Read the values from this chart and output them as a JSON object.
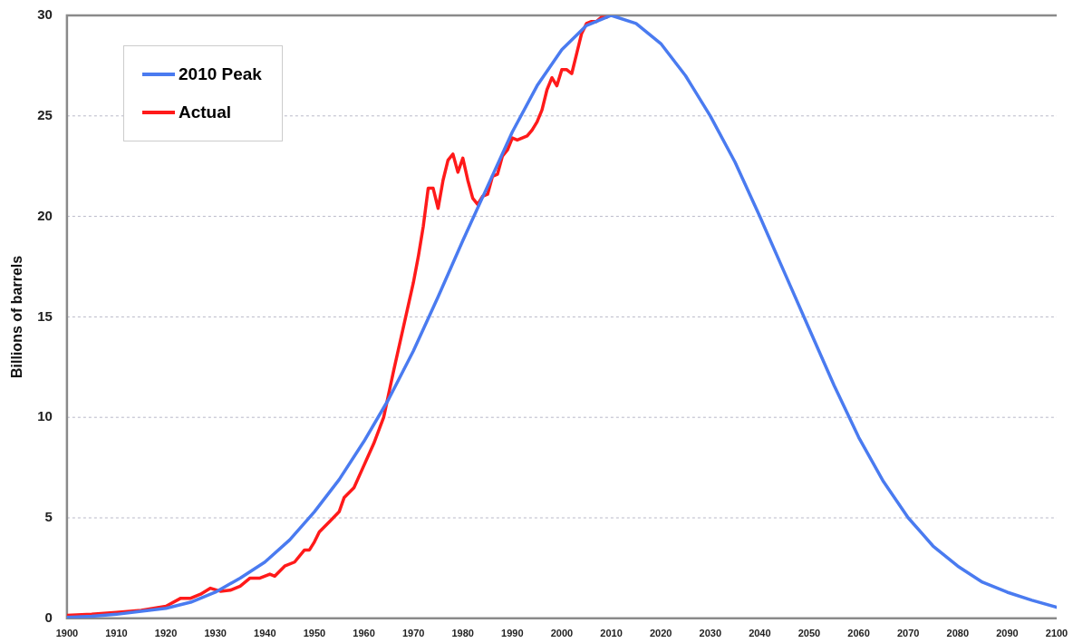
{
  "chart_data": {
    "type": "line",
    "ylabel": "Billions of barrels",
    "xlim": [
      1900,
      2100
    ],
    "xticks": [
      1900,
      1910,
      1920,
      1930,
      1940,
      1950,
      1960,
      1970,
      1980,
      1990,
      2000,
      2010,
      2020,
      2030,
      2040,
      2050,
      2060,
      2070,
      2080,
      2090,
      2100
    ],
    "ylim": [
      0,
      30
    ],
    "yticks": [
      0,
      5,
      10,
      15,
      20,
      25,
      30
    ],
    "grid": "y",
    "legend": "top left",
    "marker": "none",
    "line_style": "solid",
    "series": [
      {
        "name": "2010 Peak",
        "color": "#4a7bf0",
        "x": [
          1900,
          1905,
          1910,
          1915,
          1920,
          1925,
          1930,
          1935,
          1940,
          1945,
          1950,
          1955,
          1960,
          1965,
          1970,
          1975,
          1980,
          1985,
          1990,
          1995,
          2000,
          2005,
          2010,
          2015,
          2020,
          2025,
          2030,
          2035,
          2040,
          2045,
          2050,
          2055,
          2060,
          2065,
          2070,
          2075,
          2080,
          2085,
          2090,
          2095,
          2100
        ],
        "values": [
          0.05,
          0.1,
          0.2,
          0.35,
          0.5,
          0.8,
          1.3,
          2,
          2.8,
          3.9,
          5.3,
          6.9,
          8.8,
          10.9,
          13.3,
          16,
          18.8,
          21.5,
          24.2,
          26.5,
          28.3,
          29.5,
          30,
          29.6,
          28.6,
          27,
          25,
          22.7,
          20,
          17.2,
          14.4,
          11.6,
          9,
          6.8,
          5,
          3.6,
          2.6,
          1.8,
          1.3,
          0.9,
          0.55
        ]
      },
      {
        "name": "Actual",
        "color": "#ff1a1a",
        "x": [
          1900,
          1905,
          1910,
          1915,
          1920,
          1923,
          1925,
          1927,
          1929,
          1931,
          1933,
          1935,
          1937,
          1939,
          1941,
          1942,
          1944,
          1946,
          1948,
          1949,
          1950,
          1951,
          1953,
          1955,
          1956,
          1958,
          1960,
          1962,
          1964,
          1966,
          1968,
          1970,
          1971,
          1972,
          1973,
          1974,
          1975,
          1976,
          1977,
          1978,
          1979,
          1980,
          1981,
          1982,
          1983,
          1984,
          1985,
          1986,
          1987,
          1988,
          1989,
          1990,
          1991,
          1992,
          1993,
          1994,
          1995,
          1996,
          1997,
          1998,
          1999,
          2000,
          2001,
          2002,
          2003,
          2004,
          2005,
          2006,
          2007,
          2008,
          2009
        ],
        "values": [
          0.15,
          0.2,
          0.3,
          0.4,
          0.6,
          1,
          1,
          1.2,
          1.5,
          1.35,
          1.4,
          1.6,
          2,
          2,
          2.2,
          2.1,
          2.6,
          2.8,
          3.4,
          3.4,
          3.8,
          4.3,
          4.8,
          5.3,
          6,
          6.5,
          7.6,
          8.7,
          10,
          12.3,
          14.5,
          16.7,
          18,
          19.5,
          21.4,
          21.4,
          20.4,
          21.8,
          22.8,
          23.1,
          22.2,
          22.9,
          21.8,
          20.9,
          20.6,
          21,
          21.1,
          22,
          22.1,
          23,
          23.3,
          23.9,
          23.8,
          23.9,
          24,
          24.3,
          24.7,
          25.3,
          26.3,
          26.9,
          26.5,
          27.3,
          27.3,
          27.1,
          28.1,
          29.1,
          29.6,
          29.7,
          29.7,
          29.9,
          29.9
        ]
      }
    ]
  }
}
